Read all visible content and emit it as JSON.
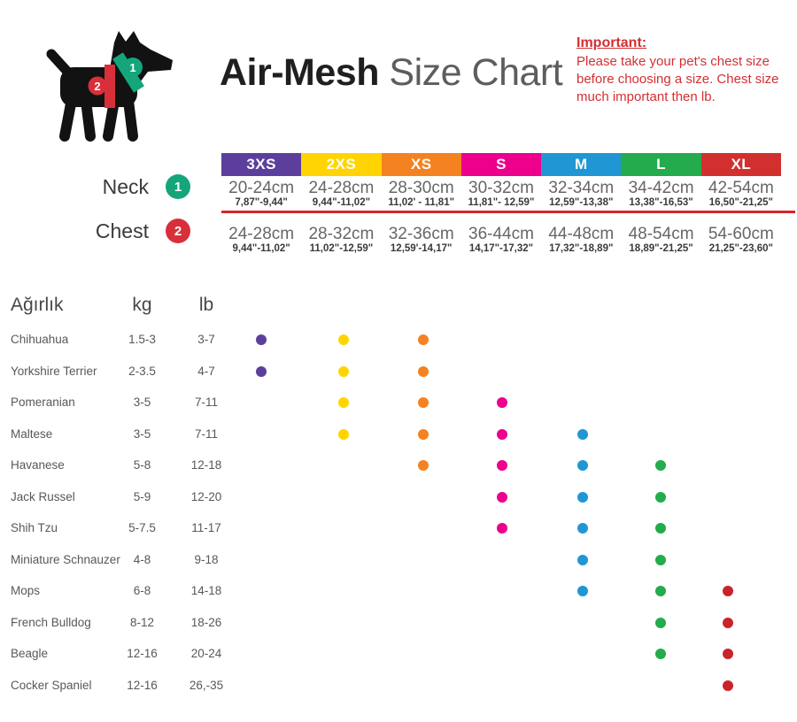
{
  "title": {
    "brand": "Air-Mesh",
    "rest": " Size Chart"
  },
  "notice": {
    "heading": "Important:",
    "body": "Please take your pet's chest size before choosing a size. Chest size much important then lb."
  },
  "measure": {
    "neck_label": "Neck",
    "neck_num": "1",
    "chest_label": "Chest",
    "chest_num": "2"
  },
  "colors": {
    "notice_red": "#d32f32",
    "divider_red": "#d8232b",
    "neck_marker_green": "#14a57b",
    "chest_marker_red": "#d8303b",
    "dog_black": "#121212"
  },
  "sizes": [
    {
      "label": "3XS",
      "color": "#5c3f9d",
      "neck_cm": "20-24cm",
      "neck_in": "7,87\"-9,44\"",
      "chest_cm": "24-28cm",
      "chest_in": "9,44\"-11,02\""
    },
    {
      "label": "2XS",
      "color": "#ffd400",
      "neck_cm": "24-28cm",
      "neck_in": "9,44\"-11,02\"",
      "chest_cm": "28-32cm",
      "chest_in": "11,02\"-12,59\""
    },
    {
      "label": "XS",
      "color": "#f58220",
      "neck_cm": "28-30cm",
      "neck_in": "11,02' - 11,81\"",
      "chest_cm": "32-36cm",
      "chest_in": "12,59'-14,17\""
    },
    {
      "label": "S",
      "color": "#ec008c",
      "neck_cm": "30-32cm",
      "neck_in": "11,81\"- 12,59\"",
      "chest_cm": "36-44cm",
      "chest_in": "14,17\"-17,32\""
    },
    {
      "label": "M",
      "color": "#2097d4",
      "neck_cm": "32-34cm",
      "neck_in": "12,59\"-13,38\"",
      "chest_cm": "44-48cm",
      "chest_in": "17,32\"-18,89\""
    },
    {
      "label": "L",
      "color": "#23ab4d",
      "neck_cm": "34-42cm",
      "neck_in": "13,38\"-16,53\"",
      "chest_cm": "48-54cm",
      "chest_in": "18,89\"-21,25\""
    },
    {
      "label": "XL",
      "color": "#d2302e",
      "dot_color": "#c9242b",
      "neck_cm": "42-54cm",
      "neck_in": "16,50\"-21,25\"",
      "chest_cm": "54-60cm",
      "chest_in": "21,25\"-23,60\""
    }
  ],
  "weight_table": {
    "headers": {
      "breed": "Ağırlık",
      "kg": "kg",
      "lb": "lb"
    },
    "rows": [
      {
        "breed": "Chihuahua",
        "kg": "1.5-3",
        "lb": "3-7",
        "sizes": [
          "3XS",
          "2XS",
          "XS"
        ]
      },
      {
        "breed": "Yorkshire Terrier",
        "kg": "2-3.5",
        "lb": "4-7",
        "sizes": [
          "3XS",
          "2XS",
          "XS"
        ]
      },
      {
        "breed": "Pomeranian",
        "kg": "3-5",
        "lb": "7-11",
        "sizes": [
          "2XS",
          "XS",
          "S"
        ]
      },
      {
        "breed": "Maltese",
        "kg": "3-5",
        "lb": "7-11",
        "sizes": [
          "2XS",
          "XS",
          "S",
          "M"
        ]
      },
      {
        "breed": "Havanese",
        "kg": "5-8",
        "lb": "12-18",
        "sizes": [
          "XS",
          "S",
          "M",
          "L"
        ]
      },
      {
        "breed": "Jack Russel",
        "kg": "5-9",
        "lb": "12-20",
        "sizes": [
          "S",
          "M",
          "L"
        ]
      },
      {
        "breed": "Shih Tzu",
        "kg": "5-7.5",
        "lb": "11-17",
        "sizes": [
          "S",
          "M",
          "L"
        ]
      },
      {
        "breed": "Miniature Schnauzer",
        "kg": "4-8",
        "lb": "9-18",
        "sizes": [
          "M",
          "L"
        ]
      },
      {
        "breed": "Mops",
        "kg": "6-8",
        "lb": "14-18",
        "sizes": [
          "M",
          "L",
          "XL"
        ]
      },
      {
        "breed": "French Bulldog",
        "kg": "8-12",
        "lb": "18-26",
        "sizes": [
          "L",
          "XL"
        ]
      },
      {
        "breed": "Beagle",
        "kg": "12-16",
        "lb": "20-24",
        "sizes": [
          "L",
          "XL"
        ]
      },
      {
        "breed": "Cocker Spaniel",
        "kg": "12-16",
        "lb": "26,-35",
        "sizes": [
          "XL"
        ]
      }
    ]
  },
  "chart_data": {
    "type": "table",
    "title": "Air-Mesh Size Chart",
    "columns": [
      "3XS",
      "2XS",
      "XS",
      "S",
      "M",
      "L",
      "XL"
    ],
    "column_colors": [
      "#5c3f9d",
      "#ffd400",
      "#f58220",
      "#ec008c",
      "#2097d4",
      "#23ab4d",
      "#d2302e"
    ],
    "neck_cm": [
      "20-24",
      "24-28",
      "28-30",
      "30-32",
      "32-34",
      "34-42",
      "42-54"
    ],
    "neck_inches": [
      "7,87-9,44",
      "9,44-11,02",
      "11,02-11,81",
      "11,81-12,59",
      "12,59-13,38",
      "13,38-16,53",
      "16,50-21,25"
    ],
    "chest_cm": [
      "24-28",
      "28-32",
      "32-36",
      "36-44",
      "44-48",
      "48-54",
      "54-60"
    ],
    "chest_inches": [
      "9,44-11,02",
      "11,02-12,59",
      "12,59-14,17",
      "14,17-17,32",
      "17,32-18,89",
      "18,89-21,25",
      "21,25-23,60"
    ],
    "breeds": [
      {
        "name": "Chihuahua",
        "kg": "1.5-3",
        "lb": "3-7",
        "fits": [
          "3XS",
          "2XS",
          "XS"
        ]
      },
      {
        "name": "Yorkshire Terrier",
        "kg": "2-3.5",
        "lb": "4-7",
        "fits": [
          "3XS",
          "2XS",
          "XS"
        ]
      },
      {
        "name": "Pomeranian",
        "kg": "3-5",
        "lb": "7-11",
        "fits": [
          "2XS",
          "XS",
          "S"
        ]
      },
      {
        "name": "Maltese",
        "kg": "3-5",
        "lb": "7-11",
        "fits": [
          "2XS",
          "XS",
          "S",
          "M"
        ]
      },
      {
        "name": "Havanese",
        "kg": "5-8",
        "lb": "12-18",
        "fits": [
          "XS",
          "S",
          "M",
          "L"
        ]
      },
      {
        "name": "Jack Russel",
        "kg": "5-9",
        "lb": "12-20",
        "fits": [
          "S",
          "M",
          "L"
        ]
      },
      {
        "name": "Shih Tzu",
        "kg": "5-7.5",
        "lb": "11-17",
        "fits": [
          "S",
          "M",
          "L"
        ]
      },
      {
        "name": "Miniature Schnauzer",
        "kg": "4-8",
        "lb": "9-18",
        "fits": [
          "M",
          "L"
        ]
      },
      {
        "name": "Mops",
        "kg": "6-8",
        "lb": "14-18",
        "fits": [
          "M",
          "L",
          "XL"
        ]
      },
      {
        "name": "French Bulldog",
        "kg": "8-12",
        "lb": "18-26",
        "fits": [
          "L",
          "XL"
        ]
      },
      {
        "name": "Beagle",
        "kg": "12-16",
        "lb": "20-24",
        "fits": [
          "L",
          "XL"
        ]
      },
      {
        "name": "Cocker Spaniel",
        "kg": "12-16",
        "lb": "26,-35",
        "fits": [
          "XL"
        ]
      }
    ]
  }
}
